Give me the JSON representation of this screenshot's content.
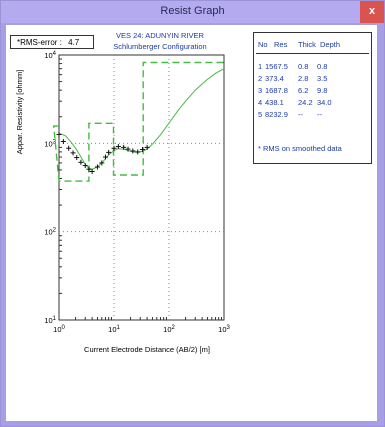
{
  "window": {
    "title": "Resist Graph",
    "close_label": "x"
  },
  "rms": {
    "label": "*RMS-error :",
    "value": "4.7"
  },
  "plot": {
    "title_line1": "VES 24: ADUNYIN RIVER",
    "title_line2": "Schlumberger Configuration",
    "xlabel": "Current Electrode Distance (AB/2) [m]",
    "ylabel": "Appar. Resistivity [ohmm]",
    "x_ticks": [
      "10^0",
      "10^1",
      "10^2",
      "10^3"
    ],
    "y_ticks": [
      "10^4",
      "10^3",
      "10^2",
      "10^1"
    ]
  },
  "legend": {
    "headers": [
      "No",
      "Res",
      "Thick",
      "Depth"
    ],
    "rows": [
      {
        "no": "1",
        "res": "1567.5",
        "thick": "0.8",
        "depth": "0.8"
      },
      {
        "no": "2",
        "res": "373.4",
        "thick": "2.8",
        "depth": "3.5"
      },
      {
        "no": "3",
        "res": "1687.8",
        "thick": "6.2",
        "depth": "9.8"
      },
      {
        "no": "4",
        "res": "438.1",
        "thick": "24.2",
        "depth": "34.0"
      },
      {
        "no": "5",
        "res": "8232.9",
        "thick": "--",
        "depth": "--"
      }
    ],
    "note": "* RMS on smoothed data"
  },
  "chart_data": {
    "type": "scatter",
    "xscale": "log",
    "yscale": "log",
    "xlim": [
      1,
      1000
    ],
    "ylim": [
      10,
      10000
    ],
    "grid": true,
    "observed": {
      "x": [
        1,
        1.2,
        1.5,
        1.8,
        2.1,
        2.5,
        3,
        3.5,
        4,
        5,
        6,
        7,
        8,
        10,
        12,
        15,
        18,
        22,
        27,
        33,
        40
      ],
      "y": [
        1260,
        1050,
        880,
        780,
        690,
        610,
        560,
        510,
        480,
        540,
        600,
        700,
        790,
        880,
        920,
        900,
        860,
        820,
        800,
        850,
        900
      ]
    },
    "model_curve": {
      "x": [
        1,
        1.3,
        1.6,
        2,
        2.5,
        3,
        3.5,
        4,
        5,
        6,
        7,
        8,
        10,
        12,
        15,
        18,
        22,
        27,
        33,
        40,
        50,
        70,
        100,
        150,
        200,
        300,
        500,
        700,
        1000
      ],
      "y": [
        1300,
        1220,
        1060,
        880,
        700,
        580,
        520,
        510,
        540,
        600,
        670,
        740,
        830,
        870,
        860,
        830,
        800,
        790,
        810,
        860,
        980,
        1250,
        1700,
        2400,
        3000,
        4000,
        5300,
        6200,
        7000
      ]
    },
    "layers": {
      "resistivity": [
        1567.5,
        373.4,
        1687.8,
        438.1,
        8232.9
      ],
      "depth": [
        0.8,
        3.5,
        9.8,
        34.0
      ]
    }
  }
}
